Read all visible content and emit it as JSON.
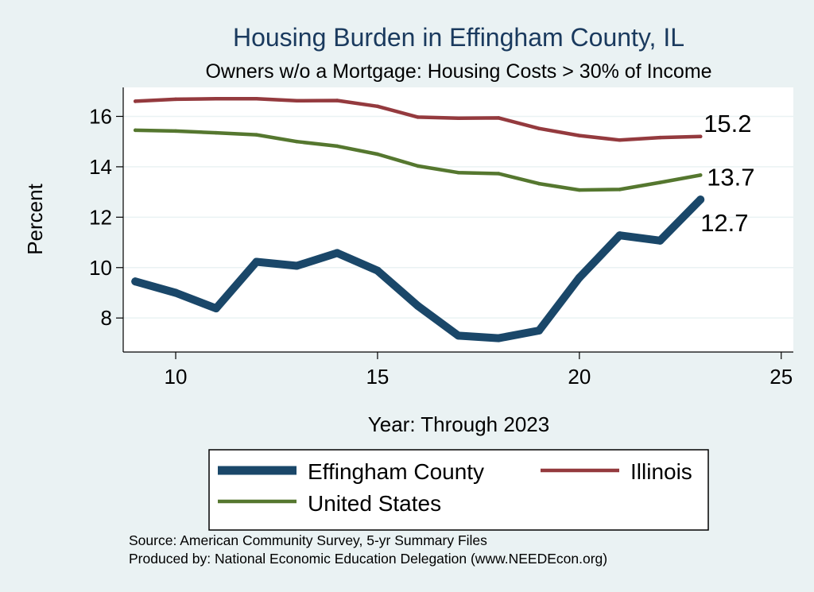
{
  "chart_data": {
    "type": "line",
    "title": "Housing Burden in Effingham County, IL",
    "subtitle": "Owners w/o a Mortgage: Housing Costs > 30% of Income",
    "xlabel": "Year: Through 2023",
    "ylabel": "Percent",
    "xlim": [
      8.7,
      25.3
    ],
    "ylim": [
      6.65,
      17.15
    ],
    "xticks": [
      10,
      15,
      20,
      25
    ],
    "yticks": [
      8,
      10,
      12,
      14,
      16
    ],
    "grid": true,
    "legend_position": "bottom",
    "x": [
      9,
      10,
      11,
      12,
      13,
      14,
      15,
      16,
      17,
      18,
      19,
      20,
      21,
      22,
      23
    ],
    "series": [
      {
        "name": "Effingham County",
        "color": "#1a4769",
        "values": [
          9.45,
          9.0,
          8.38,
          10.23,
          10.07,
          10.58,
          9.88,
          8.48,
          7.3,
          7.2,
          7.5,
          9.6,
          11.28,
          11.07,
          12.7
        ],
        "end_label": "12.7"
      },
      {
        "name": "Illinois",
        "color": "#943a3e",
        "values": [
          16.6,
          16.68,
          16.7,
          16.7,
          16.62,
          16.63,
          16.4,
          15.97,
          15.93,
          15.94,
          15.52,
          15.24,
          15.06,
          15.16,
          15.2
        ],
        "end_label": "15.2"
      },
      {
        "name": "United States",
        "color": "#55772f",
        "values": [
          15.45,
          15.42,
          15.35,
          15.27,
          15.0,
          14.82,
          14.5,
          14.03,
          13.77,
          13.73,
          13.33,
          13.08,
          13.1,
          13.38,
          13.67
        ],
        "end_label": "13.7"
      }
    ]
  },
  "legend": [
    "Effingham County",
    "Illinois",
    "United States"
  ],
  "notes": {
    "source": "Source: American Community Survey, 5-yr Summary Files",
    "produced": "Produced by: National Economic Education Delegation (www.NEEDEcon.org)"
  }
}
